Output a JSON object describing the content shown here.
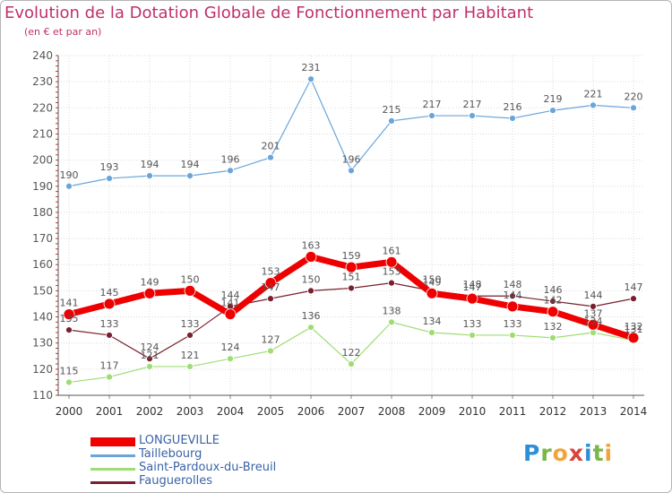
{
  "chart_data": {
    "type": "line",
    "title": "Evolution de la Dotation Globale de Fonctionnement par Habitant",
    "subtitle": "(en € et par an)",
    "x": [
      "2000",
      "2001",
      "2002",
      "2003",
      "2004",
      "2005",
      "2006",
      "2007",
      "2008",
      "2009",
      "2010",
      "2011",
      "2012",
      "2013",
      "2014"
    ],
    "ylim": [
      110,
      240
    ],
    "yticks": [
      110,
      120,
      130,
      140,
      150,
      160,
      170,
      180,
      190,
      200,
      210,
      220,
      230,
      240
    ],
    "grid": true,
    "legend_position": "bottom-left",
    "series": [
      {
        "name": "LONGUEVILLE",
        "color": "#ee0000",
        "values": [
          141,
          145,
          149,
          150,
          141,
          153,
          163,
          159,
          161,
          149,
          147,
          144,
          142,
          137,
          132
        ]
      },
      {
        "name": "Taillebourg",
        "color": "#6aa5d9",
        "values": [
          190,
          193,
          194,
          194,
          196,
          201,
          231,
          196,
          215,
          217,
          217,
          216,
          219,
          221,
          220
        ]
      },
      {
        "name": "Saint-Pardoux-du-Breuil",
        "color": "#9fdc74",
        "values": [
          115,
          117,
          121,
          121,
          124,
          127,
          136,
          122,
          138,
          134,
          133,
          133,
          132,
          134,
          131
        ]
      },
      {
        "name": "Fauguerolles",
        "color": "#7a1f2e",
        "values": [
          135,
          133,
          124,
          133,
          144,
          147,
          150,
          151,
          153,
          150,
          148,
          148,
          146,
          144,
          147
        ]
      }
    ]
  },
  "logo": {
    "letters": [
      "P",
      "r",
      "o",
      "x",
      "i",
      "t",
      "i"
    ]
  }
}
